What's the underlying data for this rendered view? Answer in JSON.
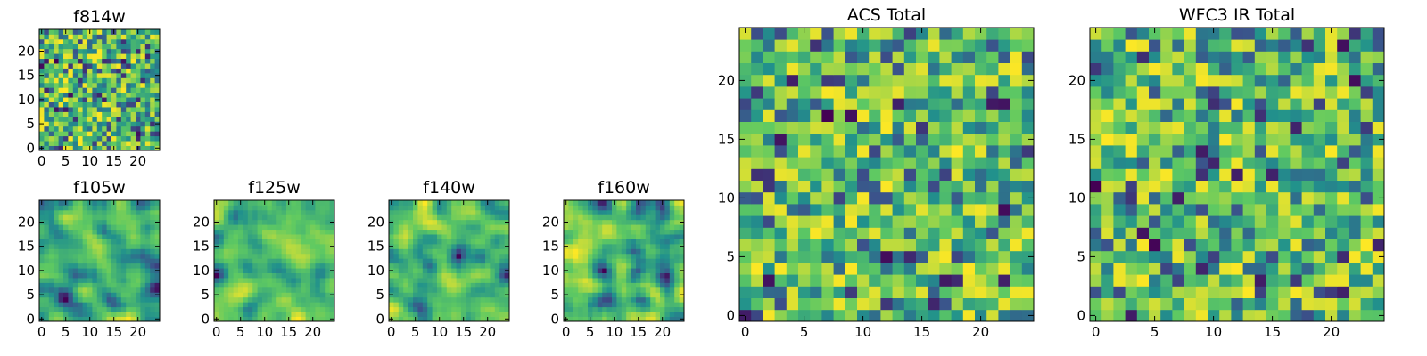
{
  "figure": {
    "colormap_name": "viridis",
    "colormap": [
      "#440154",
      "#3b528b",
      "#21918c",
      "#5ec962",
      "#fde725"
    ]
  },
  "chart_data": [
    {
      "type": "heatmap",
      "title": "f814w",
      "xlabel": "",
      "ylabel": "",
      "xlim": [
        0,
        24
      ],
      "ylim": [
        0,
        24
      ],
      "xticks": [
        0,
        5,
        10,
        15,
        20
      ],
      "yticks": [
        0,
        5,
        10,
        15,
        20
      ],
      "grid_size": 25,
      "seed": 814,
      "smoothness": 0,
      "value_range": [
        0,
        1
      ]
    },
    {
      "type": "heatmap",
      "title": "f105w",
      "xlabel": "",
      "ylabel": "",
      "xlim": [
        0,
        24
      ],
      "ylim": [
        0,
        24
      ],
      "xticks": [
        0,
        5,
        10,
        15,
        20
      ],
      "yticks": [
        0,
        5,
        10,
        15,
        20
      ],
      "grid_size": 25,
      "seed": 105,
      "smoothness": 2,
      "value_range": [
        0,
        1
      ]
    },
    {
      "type": "heatmap",
      "title": "f125w",
      "xlabel": "",
      "ylabel": "",
      "xlim": [
        0,
        24
      ],
      "ylim": [
        0,
        24
      ],
      "xticks": [
        0,
        5,
        10,
        15,
        20
      ],
      "yticks": [
        0,
        5,
        10,
        15,
        20
      ],
      "grid_size": 25,
      "seed": 125,
      "smoothness": 2,
      "value_range": [
        0,
        1
      ]
    },
    {
      "type": "heatmap",
      "title": "f140w",
      "xlabel": "",
      "ylabel": "",
      "xlim": [
        0,
        24
      ],
      "ylim": [
        0,
        24
      ],
      "xticks": [
        0,
        5,
        10,
        15,
        20
      ],
      "yticks": [
        0,
        5,
        10,
        15,
        20
      ],
      "grid_size": 25,
      "seed": 140,
      "smoothness": 2,
      "value_range": [
        0,
        1
      ]
    },
    {
      "type": "heatmap",
      "title": "f160w",
      "xlabel": "",
      "ylabel": "",
      "xlim": [
        0,
        24
      ],
      "ylim": [
        0,
        24
      ],
      "xticks": [
        0,
        5,
        10,
        15,
        20
      ],
      "yticks": [
        0,
        5,
        10,
        15,
        20
      ],
      "grid_size": 25,
      "seed": 160,
      "smoothness": 2,
      "value_range": [
        0,
        1
      ]
    },
    {
      "type": "heatmap",
      "title": "ACS Total",
      "xlabel": "",
      "ylabel": "",
      "xlim": [
        0,
        24
      ],
      "ylim": [
        0,
        24
      ],
      "xticks": [
        0,
        5,
        10,
        15,
        20
      ],
      "yticks": [
        0,
        5,
        10,
        15,
        20
      ],
      "grid_size": 25,
      "seed": 7,
      "smoothness": 0,
      "value_range": [
        0,
        1
      ]
    },
    {
      "type": "heatmap",
      "title": "WFC3 IR Total",
      "xlabel": "",
      "ylabel": "",
      "xlim": [
        0,
        24
      ],
      "ylim": [
        0,
        24
      ],
      "xticks": [
        0,
        5,
        10,
        15,
        20
      ],
      "yticks": [
        0,
        5,
        10,
        15,
        20
      ],
      "grid_size": 25,
      "seed": 33,
      "smoothness": 0,
      "value_range": [
        0,
        1
      ]
    }
  ]
}
